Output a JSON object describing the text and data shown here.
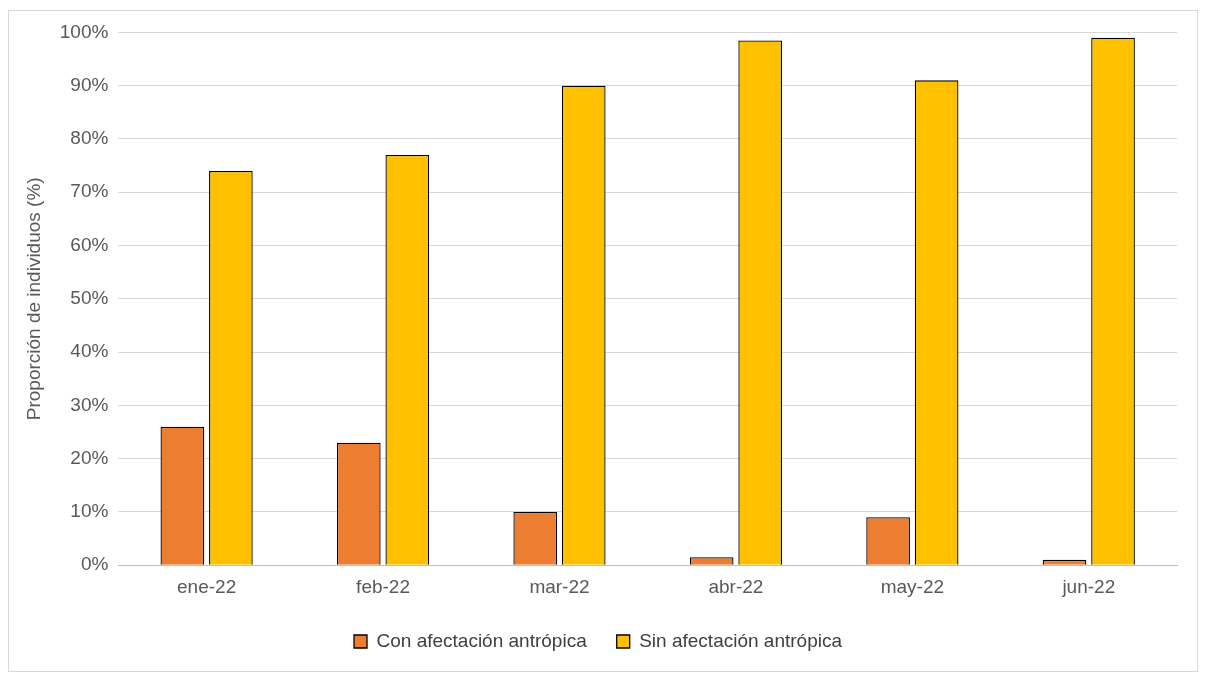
{
  "chart_data": {
    "type": "bar",
    "ylabel": "Proporción de individuos (%)",
    "categories": [
      "ene-22",
      "feb-22",
      "mar-22",
      "abr-22",
      "may-22",
      "jun-22"
    ],
    "series": [
      {
        "name": "Con afectación antrópica",
        "color": "#ed7d31",
        "values": [
          26,
          23,
          10,
          1.5,
          9,
          1
        ]
      },
      {
        "name": "Sin afectación antrópica",
        "color": "#ffc000",
        "values": [
          74,
          77,
          90,
          98.5,
          91,
          99
        ]
      }
    ],
    "ylim": [
      0,
      100
    ],
    "yticks": [
      {
        "value": 0,
        "label": "0%"
      },
      {
        "value": 10,
        "label": "10%"
      },
      {
        "value": 20,
        "label": "20%"
      },
      {
        "value": 30,
        "label": "30%"
      },
      {
        "value": 40,
        "label": "40%"
      },
      {
        "value": 50,
        "label": "50%"
      },
      {
        "value": 60,
        "label": "60%"
      },
      {
        "value": 70,
        "label": "70%"
      },
      {
        "value": 80,
        "label": "80%"
      },
      {
        "value": 90,
        "label": "90%"
      },
      {
        "value": 100,
        "label": "100%"
      }
    ],
    "grid": "y",
    "legend": "bottom"
  }
}
